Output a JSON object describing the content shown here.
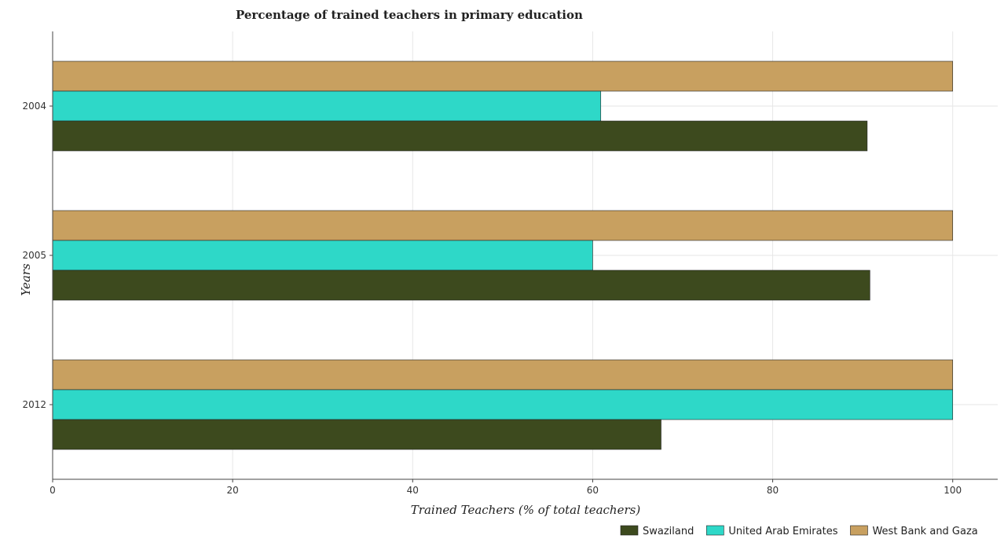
{
  "chart_data": {
    "type": "bar",
    "orientation": "horizontal",
    "title": "Percentage of trained teachers in primary education",
    "xlabel": "Trained Teachers (% of total teachers)",
    "ylabel": "Years",
    "categories": [
      "2004",
      "2005",
      "2012"
    ],
    "xlim": [
      0,
      105
    ],
    "xticks": [
      0,
      20,
      40,
      60,
      80,
      100
    ],
    "grid": true,
    "legend_position": "bottom-right",
    "series": [
      {
        "name": "Swaziland",
        "color": "#3d4a1e",
        "values": [
          90.5,
          90.8,
          67.6
        ]
      },
      {
        "name": "United Arab Emirates",
        "color": "#2ed8c8",
        "values": [
          60.9,
          60.0,
          100.0
        ]
      },
      {
        "name": "West Bank and Gaza",
        "color": "#c8a060",
        "values": [
          100.0,
          100.0,
          100.0
        ]
      }
    ]
  }
}
